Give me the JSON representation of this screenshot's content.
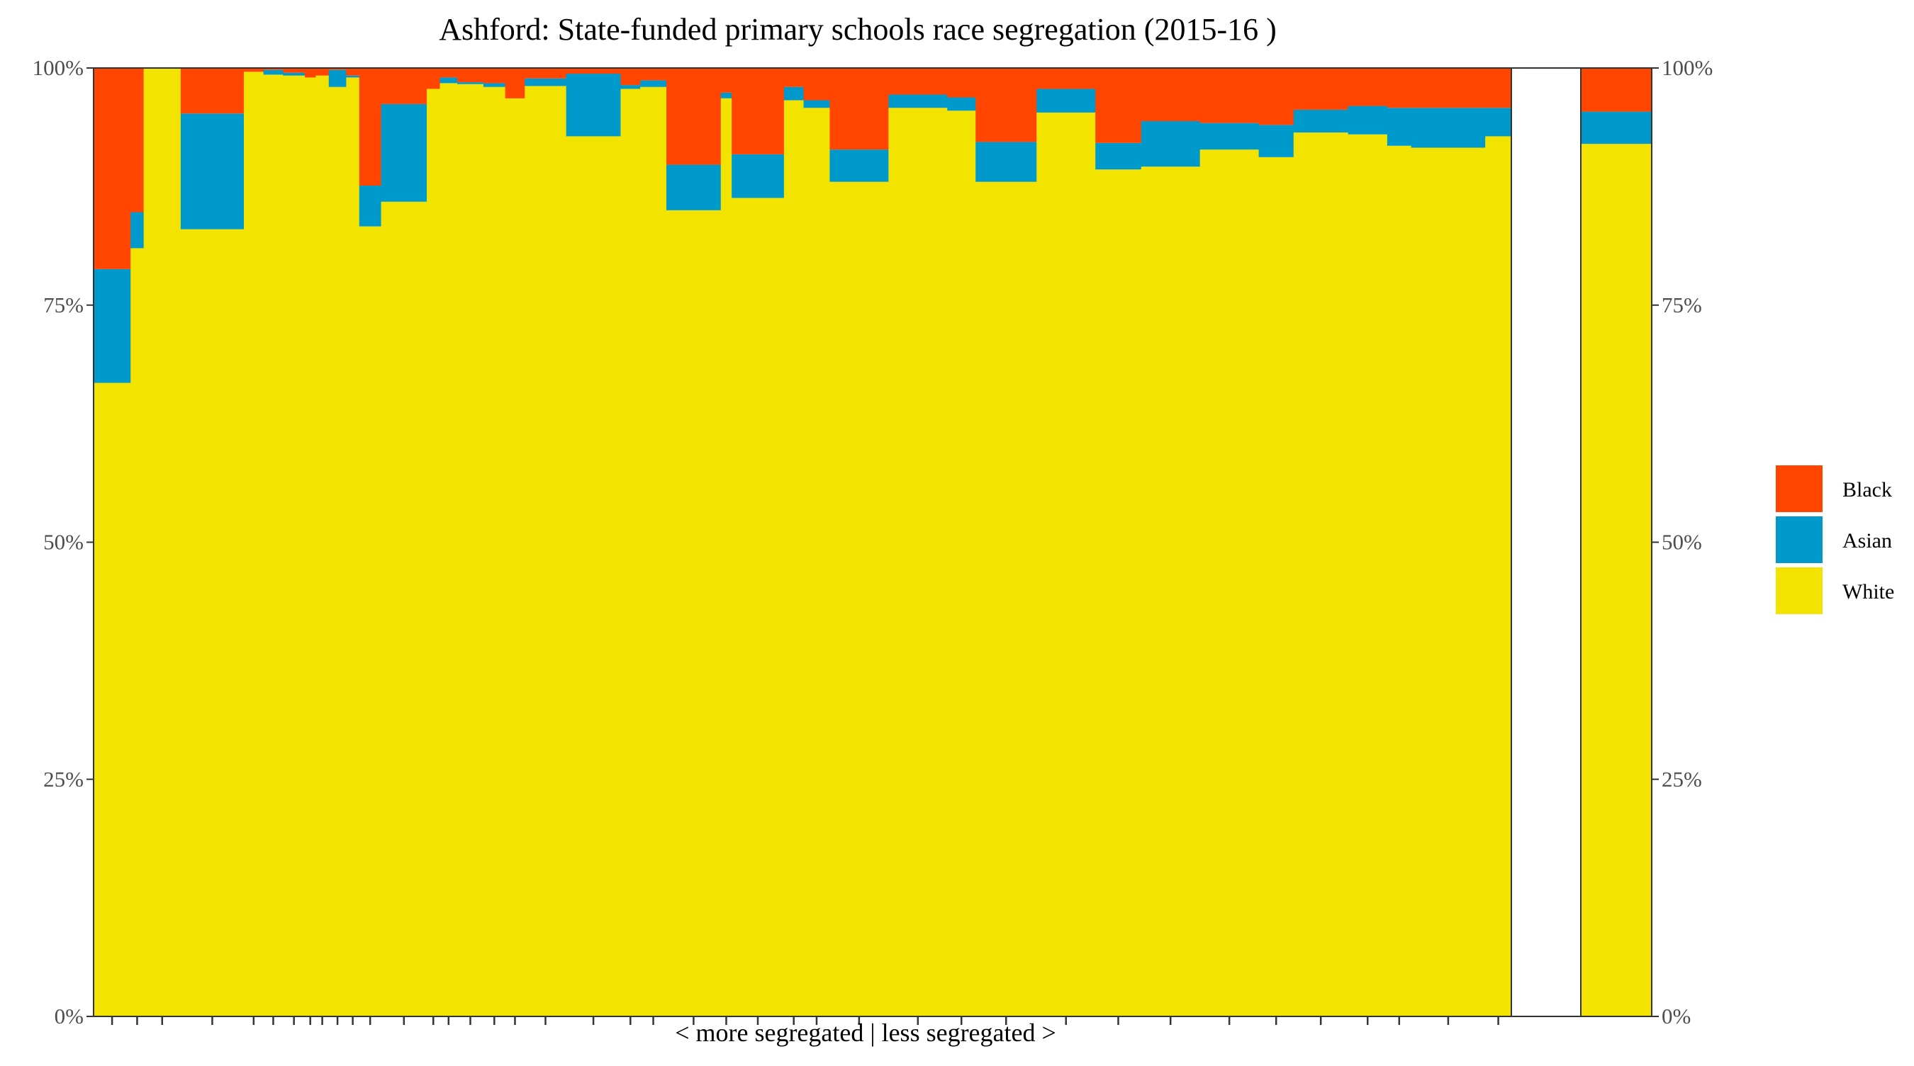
{
  "chart_data": {
    "type": "bar",
    "subtype": "stacked-variable-width",
    "title": "Ashford: State-funded primary schools race segregation (2015-16 )",
    "xlabel": "< more segregated | less segregated >",
    "ylabel": "",
    "ylim": [
      0,
      100
    ],
    "y_ticks": [
      "0%",
      "25%",
      "50%",
      "75%",
      "100%"
    ],
    "grid": false,
    "legend_position": "right",
    "series": [
      {
        "name": "Black",
        "color": "#FF4500"
      },
      {
        "name": "Asian",
        "color": "#0099CC"
      },
      {
        "name": "White",
        "color": "#F2E300"
      }
    ],
    "schools": [
      {
        "size": 17,
        "white": 66.8,
        "asian": 12.0,
        "black": 21.2
      },
      {
        "size": 6,
        "white": 81.0,
        "asian": 3.8,
        "black": 15.2
      },
      {
        "size": 17,
        "white": 100,
        "asian": 0,
        "black": 0
      },
      {
        "size": 29,
        "white": 83.0,
        "asian": 12.2,
        "black": 4.8
      },
      {
        "size": 9,
        "white": 99.6,
        "asian": 0,
        "black": 0.4
      },
      {
        "size": 9,
        "white": 99.3,
        "asian": 0.5,
        "black": 0.2
      },
      {
        "size": 10,
        "white": 99.2,
        "asian": 0.3,
        "black": 0.5
      },
      {
        "size": 5,
        "white": 99.0,
        "asian": 0,
        "black": 1.0
      },
      {
        "size": 6,
        "white": 99.2,
        "asian": 0,
        "black": 0.8
      },
      {
        "size": 8,
        "white": 98.0,
        "asian": 1.8,
        "black": 0.2
      },
      {
        "size": 6,
        "white": 99.0,
        "asian": 0.2,
        "black": 0.8
      },
      {
        "size": 10,
        "white": 83.3,
        "asian": 4.3,
        "black": 12.4
      },
      {
        "size": 21,
        "white": 85.9,
        "asian": 10.3,
        "black": 3.8
      },
      {
        "size": 6,
        "white": 97.8,
        "asian": 0,
        "black": 2.2
      },
      {
        "size": 8,
        "white": 98.4,
        "asian": 0.6,
        "black": 1.0
      },
      {
        "size": 12,
        "white": 98.3,
        "asian": 0.2,
        "black": 1.5
      },
      {
        "size": 10,
        "white": 98.0,
        "asian": 0.4,
        "black": 1.6
      },
      {
        "size": 9,
        "white": 96.8,
        "asian": 0,
        "black": 3.2
      },
      {
        "size": 19,
        "white": 98.1,
        "asian": 0.8,
        "black": 1.1
      },
      {
        "size": 25,
        "white": 92.8,
        "asian": 6.6,
        "black": 0.6
      },
      {
        "size": 9,
        "white": 97.8,
        "asian": 0.4,
        "black": 1.8
      },
      {
        "size": 12,
        "white": 98.0,
        "asian": 0.7,
        "black": 1.3
      },
      {
        "size": 25,
        "white": 85.0,
        "asian": 4.8,
        "black": 10.2
      },
      {
        "size": 5,
        "white": 96.8,
        "asian": 0.6,
        "black": 2.6
      },
      {
        "size": 24,
        "white": 86.3,
        "asian": 4.6,
        "black": 9.1
      },
      {
        "size": 9,
        "white": 96.6,
        "asian": 1.4,
        "black": 2.0
      },
      {
        "size": 12,
        "white": 95.8,
        "asian": 0.8,
        "black": 3.4
      },
      {
        "size": 27,
        "white": 88.0,
        "asian": 3.4,
        "black": 8.6
      },
      {
        "size": 27,
        "white": 95.8,
        "asian": 1.4,
        "black": 2.8
      },
      {
        "size": 13,
        "white": 95.5,
        "asian": 1.4,
        "black": 3.1
      },
      {
        "size": 28,
        "white": 88.0,
        "asian": 4.2,
        "black": 7.8
      },
      {
        "size": 27,
        "white": 95.3,
        "asian": 2.5,
        "black": 2.2
      },
      {
        "size": 21,
        "white": 89.3,
        "asian": 2.8,
        "black": 7.9
      },
      {
        "size": 27,
        "white": 89.6,
        "asian": 4.8,
        "black": 5.6
      },
      {
        "size": 27,
        "white": 91.4,
        "asian": 2.8,
        "black": 5.8
      },
      {
        "size": 16,
        "white": 90.6,
        "asian": 3.4,
        "black": 6.0
      },
      {
        "size": 25,
        "white": 93.2,
        "asian": 2.4,
        "black": 4.4
      },
      {
        "size": 18,
        "white": 93.0,
        "asian": 3.0,
        "black": 4.0
      },
      {
        "size": 11,
        "white": 91.8,
        "asian": 4.0,
        "black": 4.2
      },
      {
        "size": 34,
        "white": 91.6,
        "asian": 4.2,
        "black": 4.2
      },
      {
        "size": 12,
        "white": 92.8,
        "asian": 3.0,
        "black": 4.2
      }
    ],
    "overall": {
      "white": 92.0,
      "asian": 3.4,
      "black": 4.6
    }
  }
}
